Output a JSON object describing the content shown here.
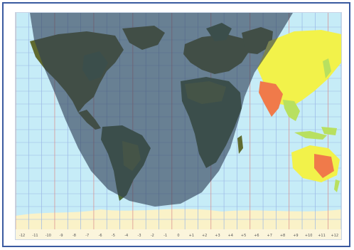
{
  "map": {
    "type": "world time-zone day/night terminator map",
    "night_region": "shaded dark overlay over the Americas, Atlantic, Africa and Europe",
    "day_region": "sunlit Asia and Australia (bright yellow)",
    "colors": {
      "ocean": "#c6ecf7",
      "night_overlay": "#2e3d55",
      "land_night_olive": "#5f6a2f",
      "land_night_green": "#4f6b3a",
      "land_day_yellow": "#f2f24a",
      "land_day_green": "#b8e060",
      "land_day_orange": "#f07a4a",
      "antarctica_ice": "#faf2c8",
      "grid_blue": "#9ab7e6",
      "grid_red": "#d98a8a",
      "frame": "#3a5aa0"
    }
  },
  "timezone_labels": [
    "-12",
    "-11",
    "-10",
    "-9",
    "-8",
    "-7",
    "-6",
    "-5",
    "-4",
    "-3",
    "-2",
    "-1",
    "0",
    "+1",
    "+2",
    "+3",
    "+4",
    "+5",
    "+6",
    "+7",
    "+8",
    "+9",
    "+10",
    "+11",
    "+12"
  ]
}
